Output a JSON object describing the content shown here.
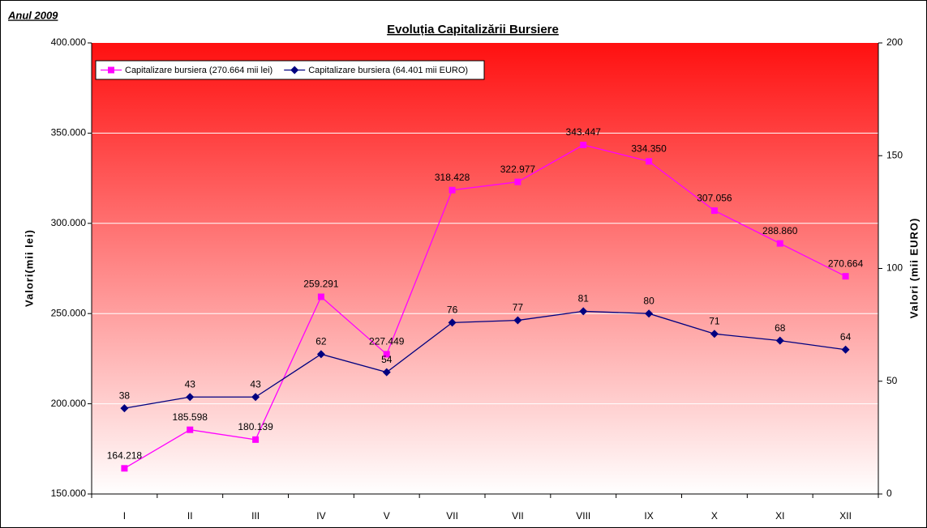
{
  "chart_data": {
    "type": "line",
    "title": "Evoluția Capitalizării Bursiere",
    "subtitle": "Anul 2009",
    "ylabel": "Valori(mii lei)",
    "y2label": "Valori (mii EURO)",
    "categories": [
      "I",
      "II",
      "III",
      "IV",
      "V",
      "VII",
      "VII",
      "VIII",
      "IX",
      "X",
      "XI",
      "XII"
    ],
    "series": [
      {
        "name": "Capitalizare bursiera (270.664 mii lei)",
        "color": "#ff00ff",
        "values": [
          164218,
          185598,
          180139,
          259291,
          227449,
          318428,
          322977,
          343447,
          334350,
          307056,
          288860,
          270664
        ],
        "value_labels": [
          "164.218",
          "185.598",
          "180.139",
          "259.291",
          "227.449",
          "318.428",
          "322.977",
          "343.447",
          "334.350",
          "307.056",
          "288.860",
          "270.664"
        ]
      },
      {
        "name": "Capitalizare bursiera (64.401 mii EURO)",
        "color": "#000080",
        "axis": "y2",
        "values": [
          38,
          43,
          43,
          62,
          54,
          76,
          77,
          81,
          80,
          71,
          68,
          64
        ]
      }
    ],
    "ylim": [
      150000,
      400000
    ],
    "yticks": [
      {
        "value": 150000,
        "label": "150.000"
      },
      {
        "value": 200000,
        "label": "200.000"
      },
      {
        "value": 250000,
        "label": "250.000"
      },
      {
        "value": 300000,
        "label": "300.000"
      },
      {
        "value": 350000,
        "label": "350.000"
      },
      {
        "value": 400000,
        "label": "400.000"
      }
    ],
    "y2lim": [
      0,
      200
    ],
    "y2ticks": [
      0,
      50,
      100,
      150,
      200
    ],
    "grid": true,
    "legend": "top-left"
  }
}
